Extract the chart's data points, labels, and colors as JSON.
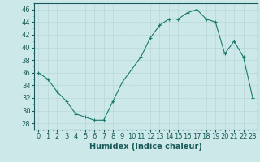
{
  "x": [
    0,
    1,
    2,
    3,
    4,
    5,
    6,
    7,
    8,
    9,
    10,
    11,
    12,
    13,
    14,
    15,
    16,
    17,
    18,
    19,
    20,
    21,
    22,
    23
  ],
  "y": [
    36,
    35,
    33,
    31.5,
    29.5,
    29,
    28.5,
    28.5,
    31.5,
    34.5,
    36.5,
    38.5,
    41.5,
    43.5,
    44.5,
    44.5,
    45.5,
    46,
    44.5,
    44,
    39,
    41,
    38.5,
    32
  ],
  "line_color": "#1a7a6e",
  "marker": "+",
  "bg_color": "#cce8e8",
  "grid_major_color": "#b8d8d8",
  "grid_minor_color": "#d4ecec",
  "xlabel": "Humidex (Indice chaleur)",
  "xlim": [
    -0.5,
    23.5
  ],
  "ylim": [
    27,
    47
  ],
  "yticks": [
    28,
    30,
    32,
    34,
    36,
    38,
    40,
    42,
    44,
    46
  ],
  "xticks": [
    0,
    1,
    2,
    3,
    4,
    5,
    6,
    7,
    8,
    9,
    10,
    11,
    12,
    13,
    14,
    15,
    16,
    17,
    18,
    19,
    20,
    21,
    22,
    23
  ],
  "xlabel_fontsize": 7.0,
  "tick_fontsize": 6.0,
  "tick_color": "#1a5a5a",
  "spine_color": "#1a5a5a",
  "label_color": "#1a5a5a"
}
